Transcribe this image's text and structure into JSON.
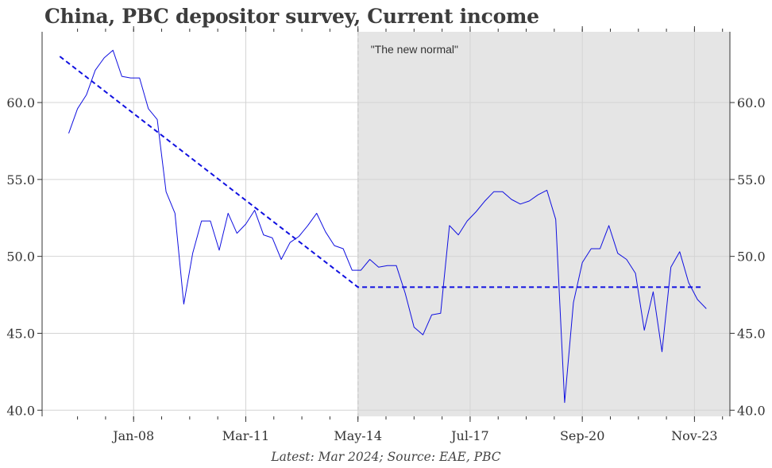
{
  "chart_data": {
    "type": "line",
    "title": "China, PBC depositor survey, Current income",
    "source": "Latest: Mar 2024; Source: EAE, PBC",
    "xlabel": "",
    "ylabel": "",
    "x_tick_labels": [
      "Jan-08",
      "Mar-11",
      "May-14",
      "Jul-17",
      "Sep-20",
      "Nov-23"
    ],
    "y_tick_labels": [
      "40.0",
      "45.0",
      "50.0",
      "55.0",
      "60.0"
    ],
    "ylim": [
      39.6,
      64.6
    ],
    "xlim": [
      "2005-06",
      "2024-11"
    ],
    "grid": true,
    "shaded_region": {
      "start": "2014-05",
      "end": "2024-11",
      "label": "\"The new normal\"",
      "color": "#e5e5e5"
    },
    "series": [
      {
        "color": "#1010e0",
        "style": "solid",
        "x": [
          "2006-03",
          "2006-06",
          "2006-09",
          "2006-12",
          "2007-03",
          "2007-06",
          "2007-09",
          "2007-12",
          "2008-03",
          "2008-06",
          "2008-09",
          "2008-12",
          "2009-03",
          "2009-06",
          "2009-09",
          "2009-12",
          "2010-03",
          "2010-06",
          "2010-09",
          "2010-12",
          "2011-03",
          "2011-06",
          "2011-09",
          "2011-12",
          "2012-03",
          "2012-06",
          "2012-09",
          "2012-12",
          "2013-03",
          "2013-06",
          "2013-09",
          "2013-12",
          "2014-03",
          "2014-06",
          "2014-09",
          "2014-12",
          "2015-03",
          "2015-06",
          "2015-09",
          "2015-12",
          "2016-03",
          "2016-06",
          "2016-09",
          "2016-12",
          "2017-03",
          "2017-06",
          "2017-09",
          "2017-12",
          "2018-03",
          "2018-06",
          "2018-09",
          "2018-12",
          "2019-03",
          "2019-06",
          "2019-09",
          "2019-12",
          "2020-03",
          "2020-06",
          "2020-09",
          "2020-12",
          "2021-03",
          "2021-06",
          "2021-09",
          "2021-12",
          "2022-03",
          "2022-06",
          "2022-09",
          "2022-12",
          "2023-03",
          "2023-06",
          "2023-09",
          "2023-12",
          "2024-03"
        ],
        "values": [
          58.0,
          59.6,
          60.5,
          62.1,
          62.9,
          63.4,
          61.7,
          61.6,
          61.6,
          59.6,
          58.9,
          54.2,
          52.8,
          46.9,
          50.2,
          52.3,
          52.3,
          50.4,
          52.8,
          51.5,
          52.1,
          53.0,
          51.4,
          51.2,
          49.8,
          50.9,
          51.3,
          52.0,
          52.8,
          51.6,
          50.7,
          50.5,
          49.1,
          49.1,
          49.8,
          49.3,
          49.4,
          49.4,
          47.6,
          45.4,
          44.9,
          46.2,
          46.3,
          52.0,
          51.4,
          52.3,
          52.9,
          53.6,
          54.2,
          54.2,
          53.7,
          53.4,
          53.6,
          54.0,
          54.3,
          52.4,
          40.5,
          47.0,
          49.6,
          50.5,
          50.5,
          52.0,
          50.2,
          49.8,
          48.9,
          45.2,
          47.7,
          43.8,
          49.3,
          50.3,
          48.3,
          47.2,
          46.6
        ]
      },
      {
        "color": "#1010e0",
        "style": "dashed",
        "x": [
          "2005-12",
          "2014-05",
          "2024-02"
        ],
        "values": [
          63.0,
          48.0,
          48.0
        ]
      }
    ]
  }
}
